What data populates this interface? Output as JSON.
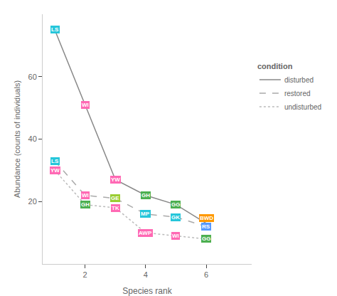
{
  "chart_data": {
    "type": "line",
    "xlabel": "Species rank",
    "ylabel": "Abundance (counts of individuals)",
    "x": [
      1,
      2,
      3,
      4,
      5,
      6
    ],
    "xlim": [
      0.6,
      7.5
    ],
    "xticks": [
      2,
      4,
      6
    ],
    "ylim": [
      0,
      80
    ],
    "yticks": [
      20,
      40,
      60
    ],
    "grid": false,
    "legend": "right",
    "legend_title": "condition",
    "series": [
      {
        "name": "disturbed",
        "color": "#888888",
        "line_style": "solid",
        "values": [
          75,
          51,
          27,
          22,
          19,
          13
        ],
        "labels": [
          "LS",
          "WI",
          "YW",
          "GH",
          "GG",
          "BWD"
        ],
        "colors": [
          "#26C6DA",
          "#FF69B4",
          "#FF69B4",
          "#4CAF50",
          "#4CAF50",
          "#FF9800"
        ]
      },
      {
        "name": "restored",
        "color": "#AAAAAA",
        "line_style": "dashed",
        "values": [
          33,
          22,
          21,
          16,
          15,
          12
        ],
        "labels": [
          "LS",
          "WI",
          "GE",
          "MP",
          "GK",
          "RS"
        ],
        "colors": [
          "#26C6DA",
          "#FF69B4",
          "#9ACD32",
          "#26C6DA",
          "#26C6DA",
          "#5599FF"
        ]
      },
      {
        "name": "undisturbed",
        "color": "#BBBBBB",
        "line_style": "dotted",
        "values": [
          30,
          19,
          18,
          10,
          9,
          8
        ],
        "labels": [
          "YW",
          "GH",
          "TK",
          "AWP",
          "WI",
          "GG"
        ],
        "colors": [
          "#FF69B4",
          "#4CAF50",
          "#FF69B4",
          "#FF69B4",
          "#FF69B4",
          "#4CAF50"
        ]
      }
    ]
  }
}
